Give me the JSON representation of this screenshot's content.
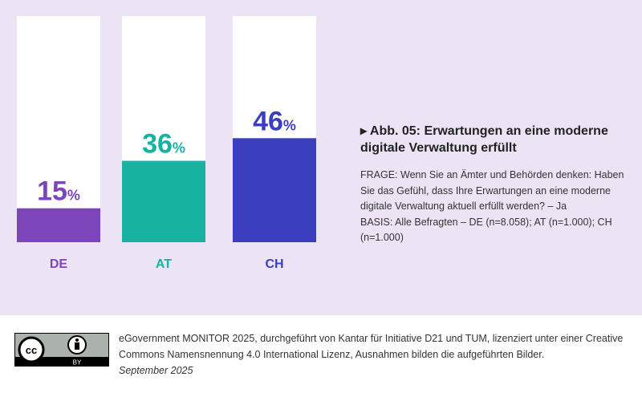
{
  "chart_data": {
    "type": "bar",
    "categories": [
      "DE",
      "AT",
      "CH"
    ],
    "values": [
      15,
      36,
      46
    ],
    "value_suffix": "%",
    "ylim": [
      0,
      100
    ],
    "colors": [
      "#7c45b9",
      "#17b2a0",
      "#3b3fbf"
    ],
    "grid": false,
    "title": "Abb. 05: Erwartungen an eine moderne digitale Verwaltung erfüllt"
  },
  "side": {
    "title_marker": "▸",
    "title": "Abb. 05: Erwartungen an eine moderne digitale Verwaltung erfüllt",
    "question": "FRAGE: Wenn Sie an Ämter und Behörden denken: Haben Sie das Gefühl, dass Ihre Erwartungen an eine moderne digitale Verwaltung aktuell erfüllt werden? – Ja",
    "basis": "BASIS: Alle Befragten – DE (n=8.058); AT (n=1.000); CH (n=1.000)"
  },
  "footer": {
    "license_logo": "CC BY",
    "text": "eGovernment MONITOR 2025, durchgeführt von Kantar für Initiative D21 und TUM, lizenziert unter einer Creative Commons Namensnennung 4.0 International Lizenz, Ausnahmen bilden die aufgeführten Bilder.",
    "date": "September 2025"
  }
}
